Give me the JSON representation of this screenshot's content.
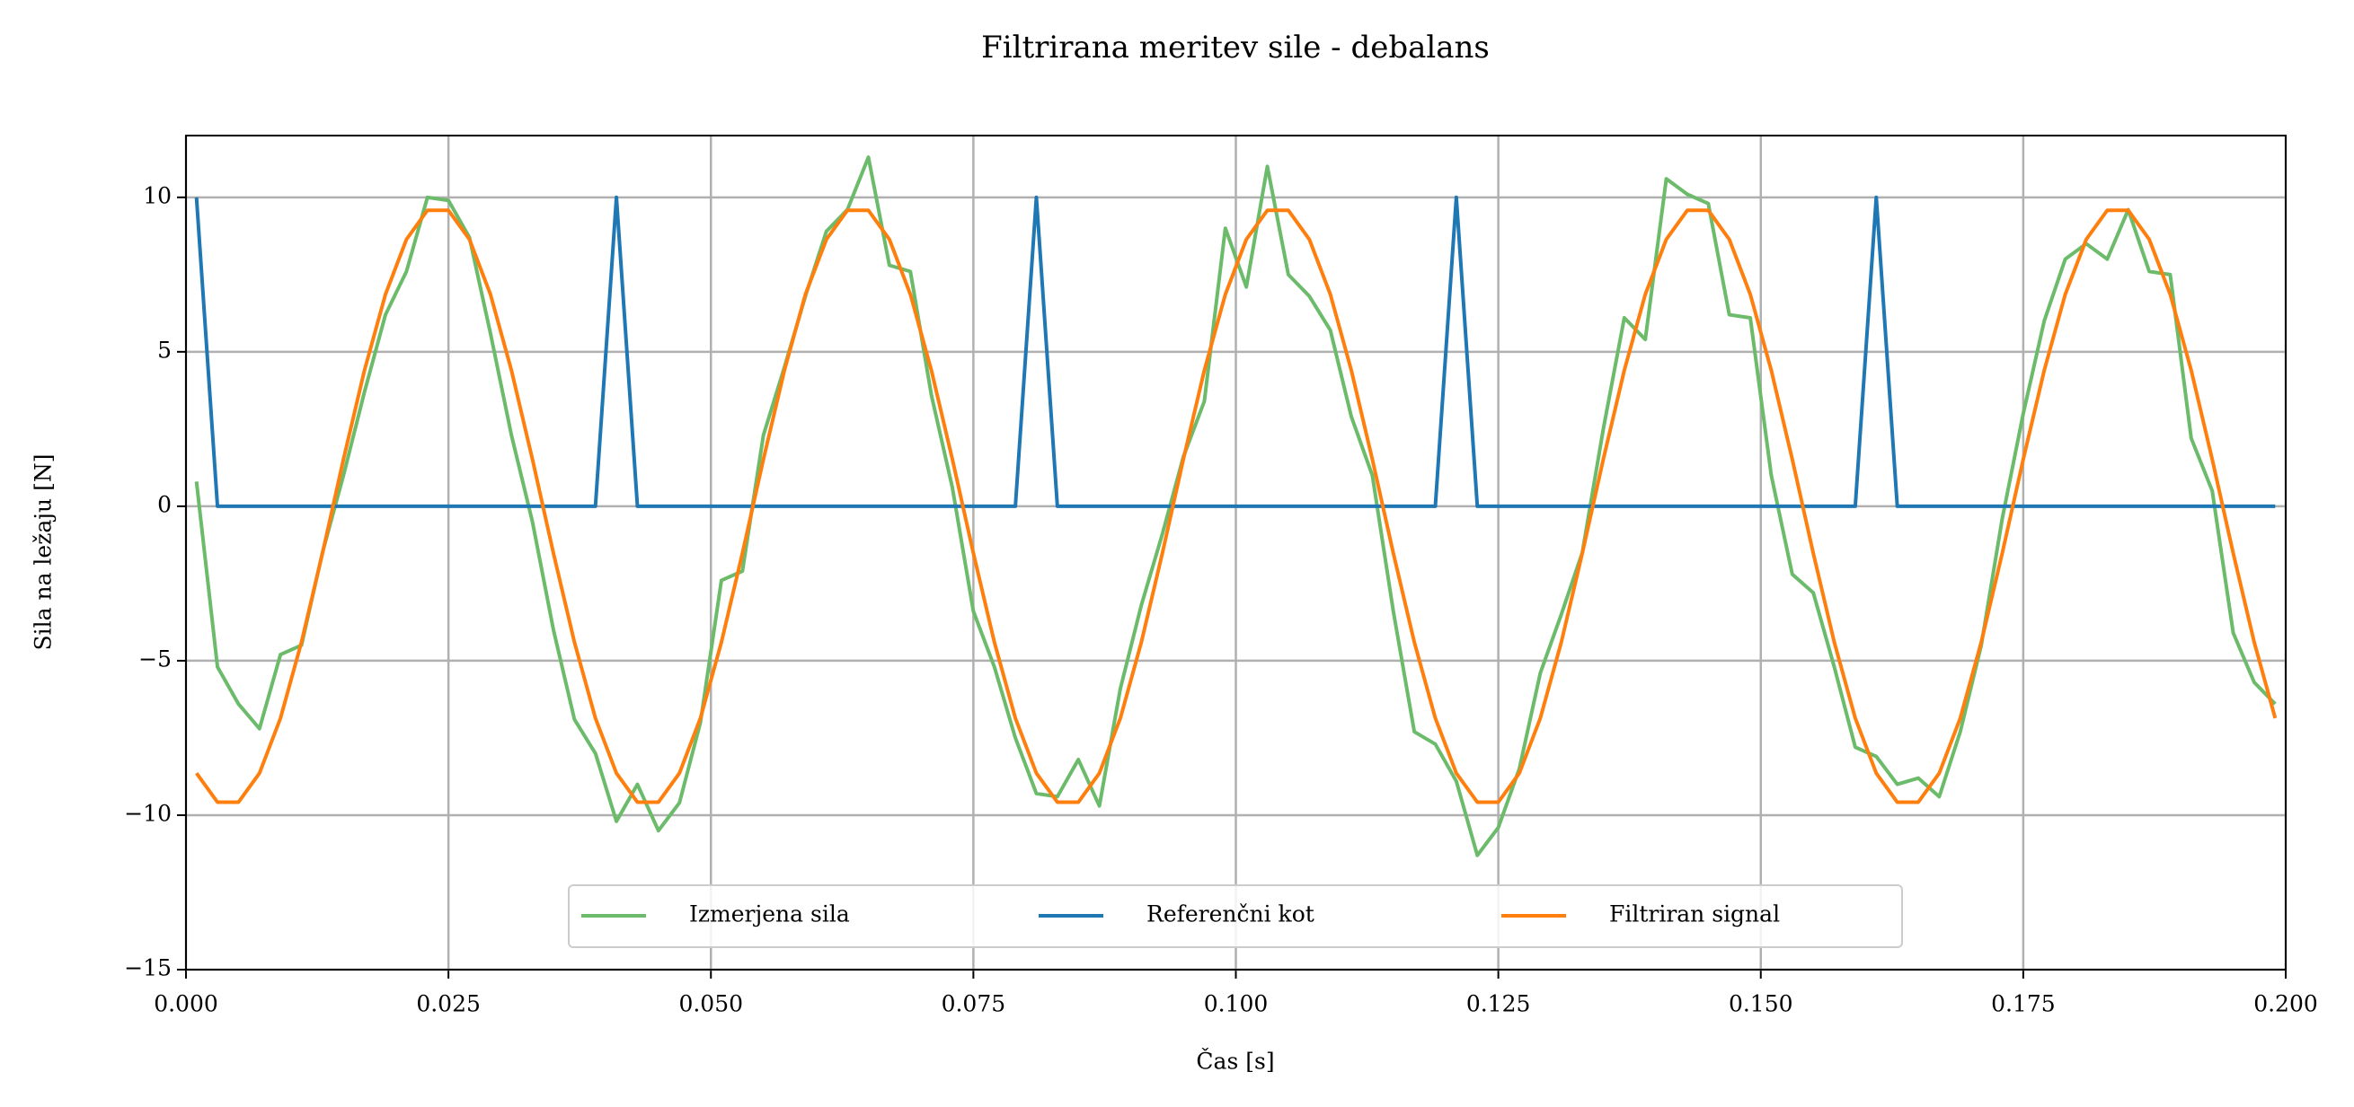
{
  "chart_data": {
    "type": "line",
    "title": "Filtrirana meritev sile - debalans",
    "x_label": "Čas [s]",
    "y_label": "Sila na ležaju [N]",
    "x": [
      0.001,
      0.003,
      0.005,
      0.007,
      0.009,
      0.011,
      0.013,
      0.015,
      0.017,
      0.019,
      0.021,
      0.023,
      0.025,
      0.027,
      0.029,
      0.031,
      0.033,
      0.035,
      0.037,
      0.039,
      0.041,
      0.043,
      0.045,
      0.047,
      0.049,
      0.051,
      0.053,
      0.055,
      0.057,
      0.059,
      0.061,
      0.063,
      0.065,
      0.067,
      0.069,
      0.071,
      0.073,
      0.075,
      0.077,
      0.079,
      0.081,
      0.083,
      0.085,
      0.087,
      0.089,
      0.091,
      0.093,
      0.095,
      0.097,
      0.099,
      0.101,
      0.103,
      0.105,
      0.107,
      0.109,
      0.111,
      0.113,
      0.115,
      0.117,
      0.119,
      0.121,
      0.123,
      0.125,
      0.127,
      0.129,
      0.131,
      0.133,
      0.135,
      0.137,
      0.139,
      0.141,
      0.143,
      0.145,
      0.147,
      0.149,
      0.151,
      0.153,
      0.155,
      0.157,
      0.159,
      0.161,
      0.163,
      0.165,
      0.167,
      0.169,
      0.171,
      0.173,
      0.175,
      0.177,
      0.179,
      0.181,
      0.183,
      0.185,
      0.187,
      0.189,
      0.191,
      0.193,
      0.195,
      0.197,
      0.199
    ],
    "series": [
      {
        "name": "Izmerjena sila",
        "color": "#6bbb6b",
        "values": [
          0.8,
          -5.2,
          -6.4,
          -7.2,
          -4.8,
          -4.5,
          -1.5,
          1.0,
          3.7,
          6.2,
          7.6,
          10.0,
          9.9,
          8.7,
          5.6,
          2.3,
          -0.5,
          -4.0,
          -6.9,
          -8.0,
          -10.2,
          -9.0,
          -10.5,
          -9.6,
          -7.0,
          -2.4,
          -2.1,
          2.3,
          4.5,
          6.8,
          8.9,
          9.6,
          11.3,
          7.8,
          7.6,
          3.6,
          0.6,
          -3.4,
          -5.2,
          -7.5,
          -9.3,
          -9.4,
          -8.2,
          -9.7,
          -5.9,
          -3.2,
          -0.9,
          1.6,
          3.4,
          9.0,
          7.1,
          11.0,
          7.5,
          6.8,
          5.7,
          2.9,
          1.0,
          -3.4,
          -7.3,
          -7.7,
          -8.9,
          -11.3,
          -10.4,
          -8.5,
          -5.4,
          -3.5,
          -1.5,
          2.5,
          6.1,
          5.4,
          10.6,
          10.1,
          9.8,
          6.2,
          6.1,
          1.0,
          -2.2,
          -2.8,
          -5.2,
          -7.8,
          -8.1,
          -9.0,
          -8.8,
          -9.4,
          -7.3,
          -4.5,
          -0.4,
          3.0,
          6.0,
          8.0,
          8.5,
          8.0,
          9.6,
          7.6,
          7.5,
          2.2,
          0.5,
          -4.1,
          -5.7,
          -6.4
        ]
      },
      {
        "name": "Referenčni kot",
        "color": "#1f77b4",
        "values": [
          10,
          0,
          0,
          0,
          0,
          0,
          0,
          0,
          0,
          0,
          0,
          0,
          0,
          0,
          0,
          0,
          0,
          0,
          0,
          0,
          10,
          0,
          0,
          0,
          0,
          0,
          0,
          0,
          0,
          0,
          0,
          0,
          0,
          0,
          0,
          0,
          0,
          0,
          0,
          0,
          10,
          0,
          0,
          0,
          0,
          0,
          0,
          0,
          0,
          0,
          0,
          0,
          0,
          0,
          0,
          0,
          0,
          0,
          0,
          0,
          10,
          0,
          0,
          0,
          0,
          0,
          0,
          0,
          0,
          0,
          0,
          0,
          0,
          0,
          0,
          0,
          0,
          0,
          0,
          0,
          10,
          0,
          0,
          0,
          0,
          0,
          0,
          0,
          0,
          0,
          0,
          0,
          0,
          0,
          0,
          0,
          0,
          0,
          0,
          0
        ]
      },
      {
        "name": "Filtriran signal",
        "color": "#ff7f0e",
        "values": [
          -8.64,
          -9.58,
          -9.58,
          -8.64,
          -6.86,
          -4.4,
          -1.52,
          1.52,
          4.4,
          6.86,
          8.64,
          9.58,
          9.58,
          8.64,
          6.86,
          4.4,
          1.52,
          -1.52,
          -4.4,
          -6.86,
          -8.64,
          -9.58,
          -9.58,
          -8.64,
          -6.86,
          -4.4,
          -1.52,
          1.52,
          4.4,
          6.86,
          8.64,
          9.58,
          9.58,
          8.64,
          6.86,
          4.4,
          1.52,
          -1.52,
          -4.4,
          -6.86,
          -8.64,
          -9.58,
          -9.58,
          -8.64,
          -6.86,
          -4.4,
          -1.52,
          1.52,
          4.4,
          6.86,
          8.64,
          9.58,
          9.58,
          8.64,
          6.86,
          4.4,
          1.52,
          -1.52,
          -4.4,
          -6.86,
          -8.64,
          -9.58,
          -9.58,
          -8.64,
          -6.86,
          -4.4,
          -1.52,
          1.52,
          4.4,
          6.86,
          8.64,
          9.58,
          9.58,
          8.64,
          6.86,
          4.4,
          1.52,
          -1.52,
          -4.4,
          -6.86,
          -8.64,
          -9.58,
          -9.58,
          -8.64,
          -6.86,
          -4.4,
          -1.52,
          1.52,
          4.4,
          6.86,
          8.64,
          9.58,
          9.58,
          8.64,
          6.86,
          4.4,
          1.52,
          -1.52,
          -4.4,
          -6.86
        ]
      }
    ],
    "xlim": [
      0,
      0.2
    ],
    "ylim": [
      -15,
      12
    ],
    "xticks": [
      {
        "value": 0,
        "label": "0.000"
      },
      0.025,
      {
        "value": 0.05,
        "label": "0.050"
      },
      0.075,
      {
        "value": 0.1,
        "label": "0.100"
      },
      0.125,
      {
        "value": 0.15,
        "label": "0.150"
      },
      0.175,
      {
        "value": 0.2,
        "label": "0.200"
      }
    ],
    "yticks": [
      {
        "value": -15,
        "label": "−15"
      },
      {
        "value": -10,
        "label": "−10"
      },
      {
        "value": -5,
        "label": "−5"
      },
      0,
      5,
      10
    ],
    "grid": true,
    "legend": "lower center"
  }
}
